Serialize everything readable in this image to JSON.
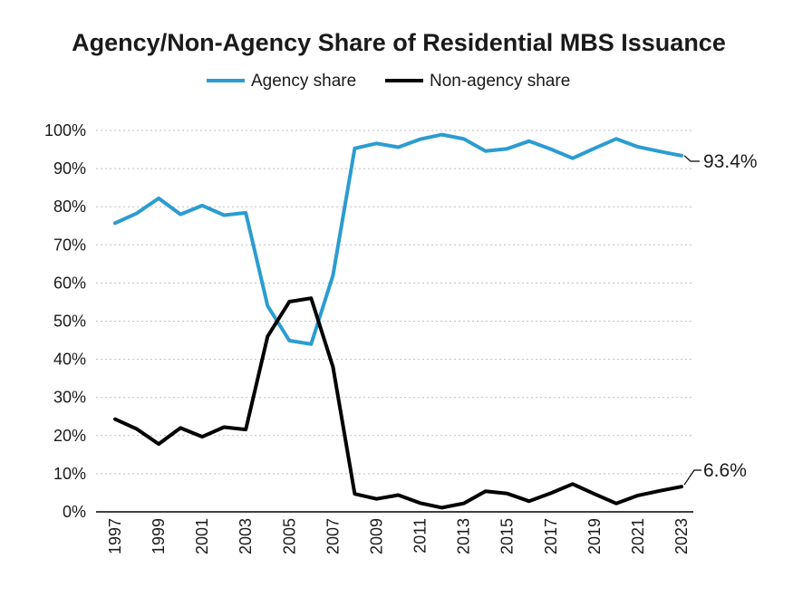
{
  "chart_data": {
    "type": "line",
    "title": "Agency/Non-Agency Share of Residential MBS Issuance",
    "xlabel": "",
    "ylabel": "",
    "ylim": [
      0,
      100
    ],
    "yticks": [
      "0%",
      "10%",
      "20%",
      "30%",
      "40%",
      "50%",
      "60%",
      "70%",
      "80%",
      "90%",
      "100%"
    ],
    "ytick_values": [
      0,
      10,
      20,
      30,
      40,
      50,
      60,
      70,
      80,
      90,
      100
    ],
    "x": [
      1997,
      1998,
      1999,
      2000,
      2001,
      2002,
      2003,
      2004,
      2005,
      2006,
      2007,
      2008,
      2009,
      2010,
      2011,
      2012,
      2013,
      2014,
      2015,
      2016,
      2017,
      2018,
      2019,
      2020,
      2021,
      2022,
      2023
    ],
    "xtick_labels": [
      "1997",
      "1999",
      "2001",
      "2003",
      "2005",
      "2007",
      "2009",
      "2011",
      "2013",
      "2015",
      "2017",
      "2019",
      "2021",
      "2023"
    ],
    "xtick_values": [
      1997,
      1999,
      2001,
      2003,
      2005,
      2007,
      2009,
      2011,
      2013,
      2015,
      2017,
      2019,
      2021,
      2023
    ],
    "grid": true,
    "legend_position": "top-center",
    "series": [
      {
        "name": "Agency share",
        "color": "#2b9cd1",
        "values": [
          75.7,
          78.3,
          82.2,
          78.0,
          80.3,
          77.8,
          78.4,
          54.0,
          44.9,
          44.0,
          62.0,
          95.3,
          96.6,
          95.6,
          97.7,
          98.9,
          97.8,
          94.6,
          95.2,
          97.2,
          95.1,
          92.7,
          95.3,
          97.8,
          95.7,
          94.5,
          93.4
        ],
        "end_label": "93.4%"
      },
      {
        "name": "Non-agency share",
        "color": "#000000",
        "values": [
          24.3,
          21.7,
          17.8,
          22.0,
          19.7,
          22.2,
          21.6,
          46.0,
          55.1,
          56.0,
          38.0,
          4.7,
          3.4,
          4.4,
          2.3,
          1.1,
          2.2,
          5.4,
          4.8,
          2.8,
          4.9,
          7.3,
          4.7,
          2.2,
          4.3,
          5.5,
          6.6
        ],
        "end_label": "6.6%"
      }
    ]
  }
}
